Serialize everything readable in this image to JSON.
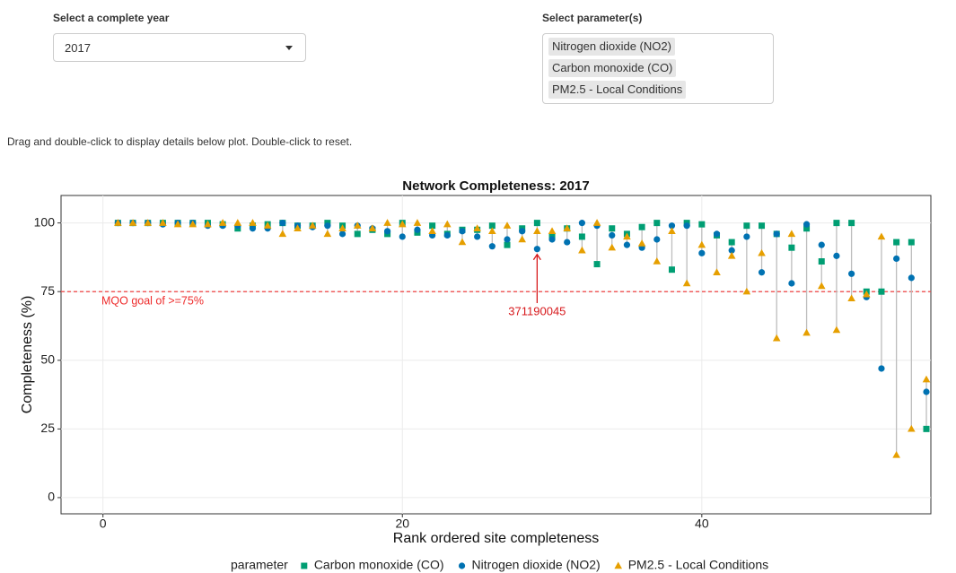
{
  "controls": {
    "year": {
      "label": "Select a complete year",
      "value": "2017"
    },
    "parameters": {
      "label": "Select parameter(s)",
      "selected": [
        "Nitrogen dioxide (NO2)",
        "Carbon monoxide (CO)",
        "PM2.5 - Local Conditions"
      ]
    }
  },
  "instructions": "Drag and double-click to display details below plot. Double-click to reset.",
  "chart_data": {
    "type": "scatter",
    "title": "Network Completeness: 2017",
    "x_label": "Rank ordered site completeness",
    "y_label": "Completeness (%)",
    "legend_title": "parameter",
    "legend": "bottom",
    "grid": true,
    "x": [
      1,
      2,
      3,
      4,
      5,
      6,
      7,
      8,
      9,
      10,
      11,
      12,
      13,
      14,
      15,
      16,
      17,
      18,
      19,
      20,
      21,
      22,
      23,
      24,
      25,
      26,
      27,
      28,
      29,
      30,
      31,
      32,
      33,
      34,
      35,
      36,
      37,
      38,
      39,
      40,
      41,
      42,
      43,
      44,
      45,
      46,
      47,
      48,
      49,
      50,
      51,
      52,
      53,
      54,
      55
    ],
    "series": [
      {
        "name": "Carbon monoxide (CO)",
        "color": "#009E73",
        "marker": "square",
        "values": [
          100,
          100,
          100,
          100,
          100,
          100,
          100,
          99.5,
          98,
          99,
          99.5,
          100,
          99,
          99,
          100,
          99,
          96,
          97.5,
          96,
          100,
          96.5,
          99,
          96,
          97.5,
          97.5,
          99,
          92,
          98,
          100,
          95,
          98,
          95,
          85,
          98,
          96,
          98.5,
          100,
          83,
          100,
          99.5,
          95.5,
          93,
          99,
          99,
          96,
          91,
          98,
          86,
          100,
          100,
          75,
          75,
          93,
          93,
          25
        ]
      },
      {
        "name": "Nitrogen dioxide (NO2)",
        "color": "#0072B2",
        "marker": "circle",
        "values": [
          100,
          100,
          100,
          99.5,
          100,
          100,
          99,
          99,
          99,
          98,
          98,
          100,
          99,
          98.5,
          99,
          96,
          99,
          98,
          97,
          95,
          97.5,
          95.5,
          95.5,
          97,
          95,
          91.5,
          94,
          97,
          90.5,
          94,
          93,
          100,
          99,
          95.5,
          92,
          91,
          94,
          99,
          99,
          89,
          96,
          90,
          95,
          82,
          96,
          78,
          99.5,
          92,
          88,
          81.5,
          73,
          47,
          87,
          80,
          38.5
        ]
      },
      {
        "name": "PM2.5 - Local Conditions",
        "color": "#E69F00",
        "marker": "triangle",
        "values": [
          100,
          100,
          100,
          100,
          99.5,
          99.5,
          99.5,
          100,
          100,
          100,
          99,
          96,
          98,
          99,
          96,
          98,
          99,
          98,
          100,
          99.5,
          100,
          97,
          99.5,
          93,
          98,
          97,
          99,
          94,
          97,
          97,
          98,
          90,
          100,
          91,
          95,
          92.5,
          86,
          97,
          78,
          92,
          82,
          88,
          75,
          89,
          58,
          96,
          60,
          77,
          61,
          72.5,
          74,
          95,
          15.5,
          25,
          43
        ]
      }
    ],
    "xlim": [
      -2.8,
      55.3
    ],
    "ylim": [
      -5.9,
      110
    ],
    "xticks": [
      0,
      20,
      40
    ],
    "yticks": [
      0,
      25,
      50,
      75,
      100
    ],
    "reference_line": {
      "value": 75,
      "label": "MQO goal of >=75%",
      "color": "#EE2C2C"
    },
    "annotation": {
      "label": "371190045",
      "x": 29,
      "color": "#D7191C"
    }
  }
}
